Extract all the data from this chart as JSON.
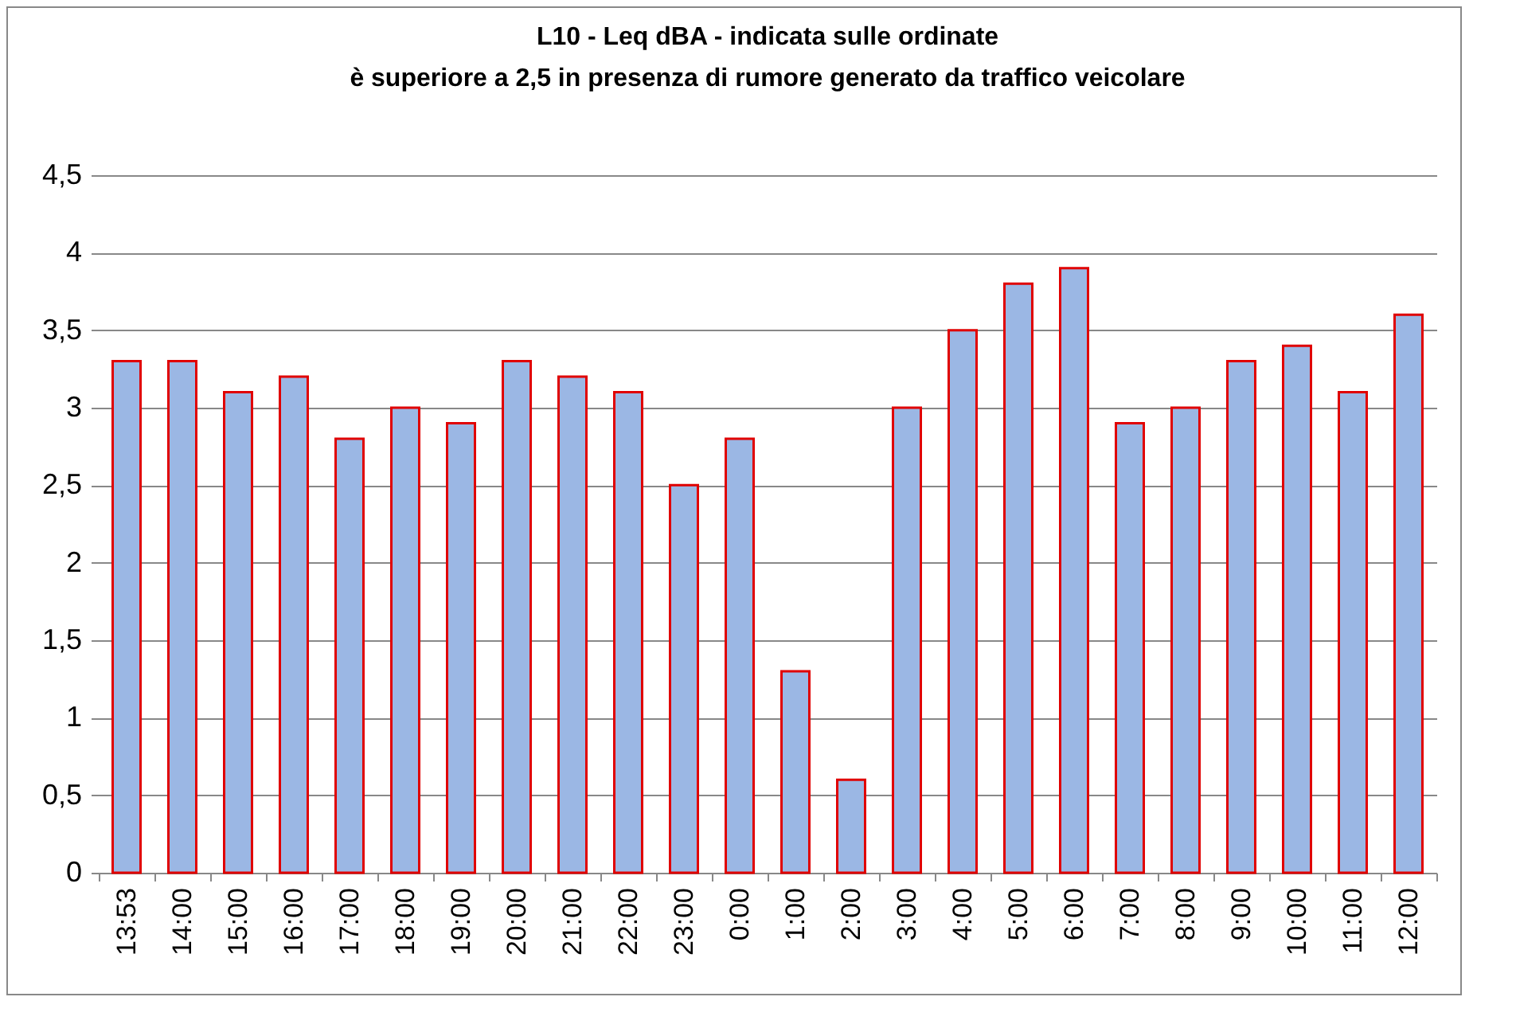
{
  "chart_data": {
    "type": "bar",
    "title": "L10 - Leq dBA - indicata sulle ordinate\nè superiore a 2,5 in presenza di rumore generato da traffico veicolare",
    "categories": [
      "13:53",
      "14:00",
      "15:00",
      "16:00",
      "17:00",
      "18:00",
      "19:00",
      "20:00",
      "21:00",
      "22:00",
      "23:00",
      "0:00",
      "1:00",
      "2:00",
      "3:00",
      "4:00",
      "5:00",
      "6:00",
      "7:00",
      "8:00",
      "9:00",
      "10:00",
      "11:00",
      "12:00"
    ],
    "values": [
      3.3,
      3.3,
      3.1,
      3.2,
      2.8,
      3.0,
      2.9,
      3.3,
      3.2,
      3.1,
      2.5,
      2.8,
      1.3,
      0.6,
      3.0,
      3.5,
      3.8,
      3.9,
      2.9,
      3.0,
      3.3,
      3.4,
      3.1,
      3.6
    ],
    "color": "#9bb7e4",
    "ylim": [
      0,
      4.5
    ],
    "yticks": [
      0,
      {
        "value": 0.5,
        "label": "0,5"
      },
      1,
      {
        "value": 1.5,
        "label": "1,5"
      },
      2,
      {
        "value": 2.5,
        "label": "2,5"
      },
      3,
      {
        "value": 3.5,
        "label": "3,5"
      },
      4,
      {
        "value": 4.5,
        "label": "4,5"
      }
    ],
    "grid": "y"
  }
}
